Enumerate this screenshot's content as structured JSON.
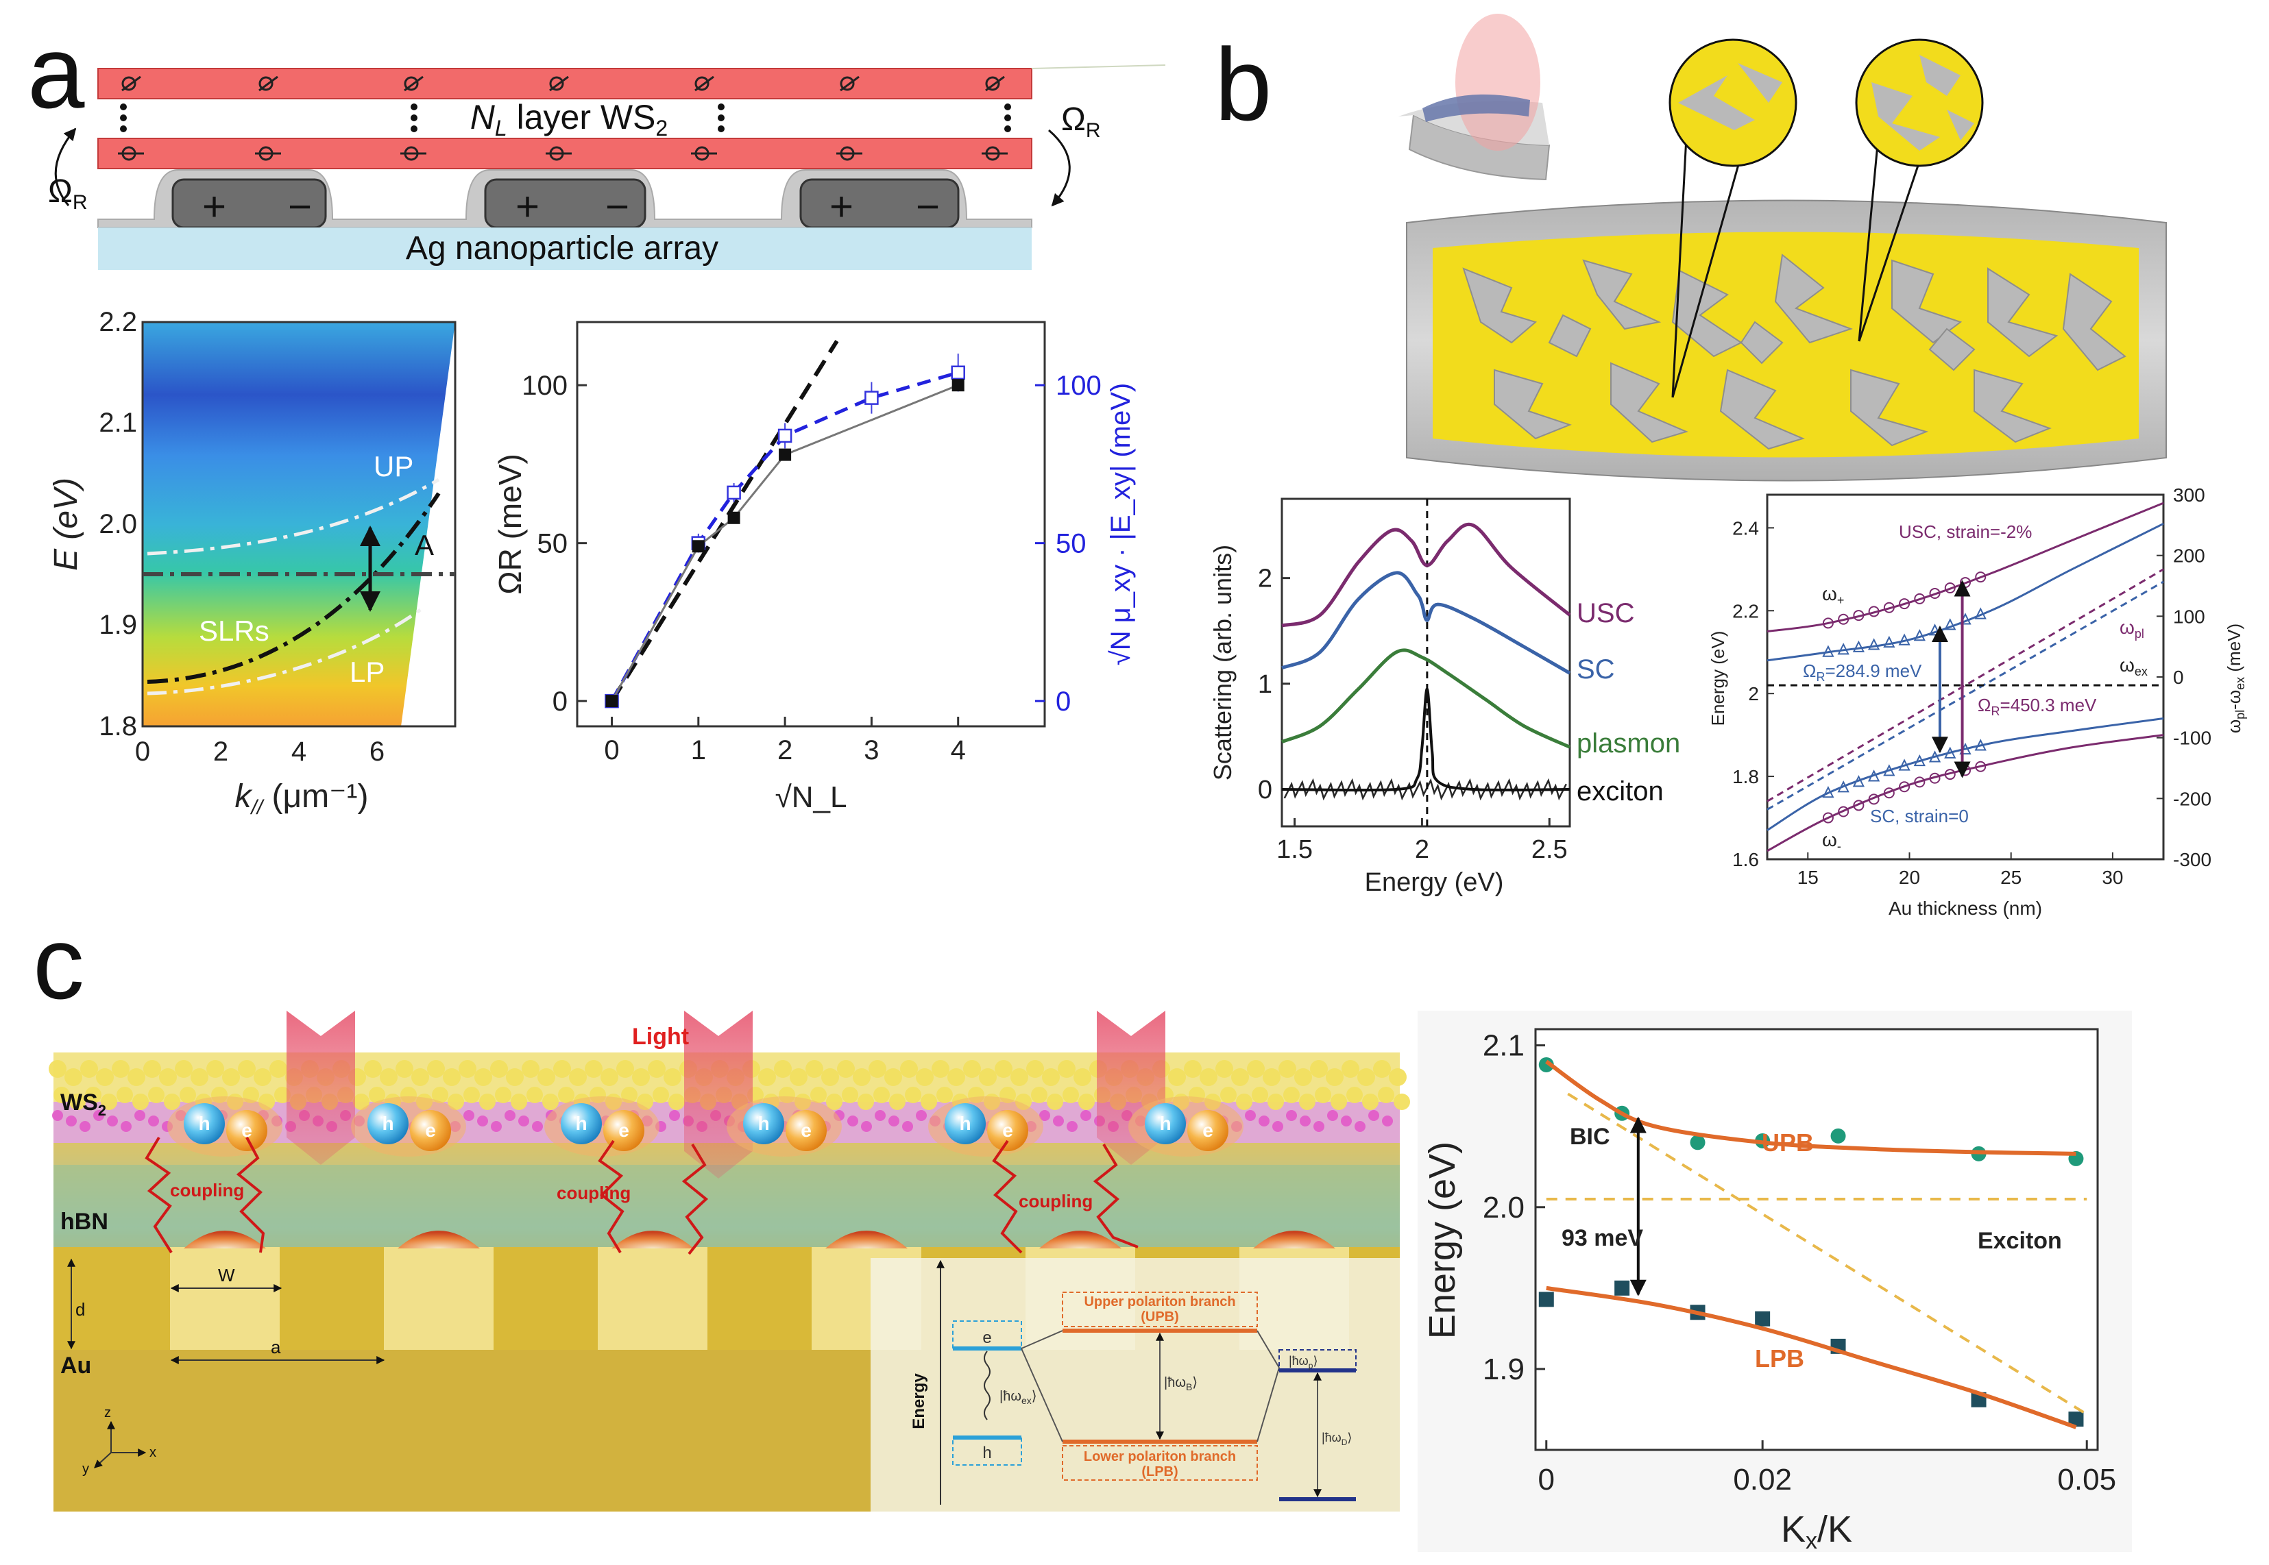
{
  "panels": {
    "a": "a",
    "b": "b",
    "c": "c"
  },
  "a_schematic": {
    "layer_label": "Nₗ layer WS₂",
    "layer_label_n": "N",
    "layer_label_sub": "L",
    "layer_label_rest": " layer WS",
    "layer_label_sub2": "2",
    "rabi_left": "Ω",
    "rabi_left_sub": "R",
    "rabi_right": "Ω",
    "rabi_right_sub": "R",
    "array_label": "Ag nanoparticle array",
    "plus": "+",
    "minus": "−"
  },
  "a_dispersion": {
    "ylabel": "E (eV)",
    "xlabel_k": "k",
    "xlabel_sub": "//",
    "xlabel_unit": " (μm⁻¹)",
    "yticks": [
      "2.2",
      "2.1",
      "2.0",
      "1.9",
      "1.8"
    ],
    "xticks": [
      "0",
      "2",
      "4",
      "6"
    ],
    "labels": {
      "up": "UP",
      "lp": "LP",
      "slrs": "SLRs",
      "a": "A"
    }
  },
  "chart_data": [
    {
      "type": "line",
      "title": "",
      "xlabel": "√N_L",
      "ylabel": "ΩR (meV)",
      "ylabel_right": "√N μ_xy · |E_xy| (meV)",
      "xlim": [
        -0.4,
        5.0
      ],
      "ylim": [
        -8,
        120
      ],
      "xticks": [
        "0",
        "1",
        "2",
        "3",
        "4"
      ],
      "yticks": [
        "0",
        "50",
        "100"
      ],
      "yticks_right": [
        "0",
        "50",
        "100"
      ],
      "series": [
        {
          "name": "measured",
          "x": [
            0,
            1,
            1.41,
            2,
            4
          ],
          "values": [
            0,
            49,
            58,
            78,
            100
          ]
        },
        {
          "name": "calculated",
          "x": [
            0,
            1,
            1.41,
            2,
            3,
            4
          ],
          "values": [
            0,
            50,
            66,
            84,
            96,
            104
          ],
          "errors": [
            0,
            3,
            3,
            4,
            5,
            6
          ]
        },
        {
          "name": "linear",
          "x": [
            0,
            2.6
          ],
          "values": [
            0,
            114
          ]
        }
      ]
    },
    {
      "type": "line",
      "title": "",
      "xlabel": "Energy (eV)",
      "ylabel": "Scattering (arb. units)",
      "xlim": [
        1.45,
        2.58
      ],
      "ylim": [
        -0.35,
        2.75
      ],
      "xticks": [
        "1.5",
        "2",
        "2.5"
      ],
      "yticks": [
        "0",
        "1",
        "2"
      ],
      "vline": 2.02,
      "series": [
        {
          "name": "USC",
          "color": "#7b2b6e",
          "x": [
            1.45,
            1.6,
            1.75,
            1.88,
            1.96,
            2.02,
            2.1,
            2.2,
            2.35,
            2.58
          ],
          "values": [
            1.55,
            1.65,
            2.15,
            2.45,
            2.35,
            2.12,
            2.35,
            2.5,
            2.1,
            1.65
          ]
        },
        {
          "name": "SC",
          "color": "#3a63a8",
          "x": [
            1.45,
            1.6,
            1.75,
            1.9,
            1.98,
            2.0,
            2.02,
            2.06,
            2.2,
            2.4,
            2.58
          ],
          "values": [
            1.15,
            1.3,
            1.8,
            2.05,
            1.85,
            1.75,
            1.6,
            1.75,
            1.62,
            1.35,
            1.1
          ]
        },
        {
          "name": "plasmon",
          "color": "#3a7d3a",
          "x": [
            1.45,
            1.6,
            1.75,
            1.9,
            2.0,
            2.1,
            2.25,
            2.4,
            2.58
          ],
          "values": [
            0.45,
            0.6,
            0.95,
            1.3,
            1.25,
            1.1,
            0.85,
            0.6,
            0.4
          ]
        },
        {
          "name": "exciton",
          "color": "#111111",
          "x": [
            1.45,
            1.9,
            1.98,
            2.0,
            2.02,
            2.04,
            2.06,
            2.2,
            2.58
          ],
          "values": [
            0.0,
            0.0,
            0.1,
            0.4,
            0.95,
            0.35,
            0.08,
            0.0,
            0.0
          ]
        }
      ]
    },
    {
      "type": "line",
      "title": "",
      "xlabel": "Au thickness (nm)",
      "ylabel": "Energy (eV)",
      "ylabel_right": "ω_pl - ω_ex (meV)",
      "xlim": [
        13,
        32.5
      ],
      "ylim": [
        1.6,
        2.48
      ],
      "xticks": [
        "15",
        "20",
        "25",
        "30"
      ],
      "yticks": [
        "1.6",
        "1.8",
        "2",
        "2.2",
        "2.4"
      ],
      "yticks_right": [
        "-300",
        "-200",
        "-100",
        "0",
        "100",
        "200",
        "300"
      ],
      "annotations": [
        "USC, strain=-2%",
        "SC, strain=0",
        "ΩR=284.9 meV",
        "ΩR=450.3 meV"
      ],
      "series": [
        {
          "name": "USC upper",
          "color": "#7b2b6e",
          "x": [
            13,
            16,
            20,
            24,
            28,
            32.5
          ],
          "values": [
            2.15,
            2.17,
            2.22,
            2.29,
            2.37,
            2.46
          ]
        },
        {
          "name": "USC lower",
          "color": "#7b2b6e",
          "x": [
            13,
            16,
            20,
            24,
            28,
            32.5
          ],
          "values": [
            1.62,
            1.7,
            1.78,
            1.83,
            1.87,
            1.9
          ]
        },
        {
          "name": "SC upper",
          "color": "#3a63a8",
          "x": [
            13,
            16,
            20,
            24,
            28,
            32.5
          ],
          "values": [
            2.08,
            2.1,
            2.13,
            2.2,
            2.3,
            2.41
          ]
        },
        {
          "name": "SC lower",
          "color": "#3a63a8",
          "x": [
            13,
            16,
            20,
            24,
            28,
            32.5
          ],
          "values": [
            1.67,
            1.76,
            1.83,
            1.88,
            1.91,
            1.94
          ]
        },
        {
          "name": "USC plasmon",
          "color": "#7b2b6e",
          "dash": true,
          "x": [
            13,
            32.5
          ],
          "values": [
            1.74,
            2.3
          ]
        },
        {
          "name": "SC plasmon",
          "color": "#3a63a8",
          "dash": true,
          "x": [
            13,
            32.5
          ],
          "values": [
            1.72,
            2.27
          ]
        },
        {
          "name": "exciton",
          "color": "#111111",
          "dash": true,
          "x": [
            13,
            32.5
          ],
          "values": [
            2.02,
            2.02
          ]
        }
      ]
    },
    {
      "type": "scatter",
      "title": "",
      "xlabel": "Kx/K",
      "ylabel": "Energy (eV)",
      "xlim": [
        -0.001,
        0.051
      ],
      "ylim": [
        1.85,
        2.11
      ],
      "xticks": [
        "0",
        "0.02",
        "0.05"
      ],
      "xtick_values": [
        0,
        0.02,
        0.05
      ],
      "yticks": [
        "2.1",
        "2.0",
        "1.9"
      ],
      "ytick_values": [
        2.1,
        2.0,
        1.9
      ],
      "annotations": [
        "UPB",
        "LPB",
        "BIC",
        "93 meV",
        "Exciton"
      ],
      "series": [
        {
          "name": "UPB data",
          "color": "#1f9a7a",
          "x": [
            0,
            0.007,
            0.014,
            0.02,
            0.027,
            0.04,
            0.049
          ],
          "values": [
            2.088,
            2.058,
            2.04,
            2.041,
            2.044,
            2.033,
            2.03
          ]
        },
        {
          "name": "LPB data",
          "color": "#1f4e5e",
          "x": [
            0,
            0.007,
            0.014,
            0.02,
            0.027,
            0.04,
            0.049
          ],
          "values": [
            1.943,
            1.95,
            1.935,
            1.931,
            1.914,
            1.881,
            1.869
          ]
        },
        {
          "name": "UPB fit",
          "color": "#e06a2a",
          "x": [
            0,
            0.005,
            0.01,
            0.02,
            0.03,
            0.04,
            0.049
          ],
          "values": [
            2.09,
            2.066,
            2.05,
            2.04,
            2.036,
            2.034,
            2.033
          ]
        },
        {
          "name": "LPB fit",
          "color": "#e06a2a",
          "x": [
            0,
            0.01,
            0.02,
            0.03,
            0.04,
            0.049
          ],
          "values": [
            1.95,
            1.94,
            1.925,
            1.905,
            1.885,
            1.864
          ]
        },
        {
          "name": "Exciton",
          "color": "#e8b84a",
          "dash": true,
          "x": [
            0,
            0.05
          ],
          "values": [
            2.005,
            2.005
          ]
        },
        {
          "name": "BIC",
          "color": "#e8b84a",
          "dash": true,
          "x": [
            0.002,
            0.05
          ],
          "values": [
            2.07,
            1.872
          ]
        }
      ]
    }
  ],
  "b_plot_labels": {
    "usc": "USC",
    "sc": "SC",
    "plasmon": "plasmon",
    "exciton": "exciton"
  },
  "b_dispersion_labels": {
    "w_plus": "ω",
    "w_plus_sub": "+",
    "w_minus": "ω",
    "w_minus_sub": "-",
    "w_pl": "ω",
    "w_pl_sub": "pl",
    "w_ex": "ω",
    "w_ex_sub": "ex",
    "rabi_sc": "Ω",
    "rabi_sc_sub": "R",
    "rabi_sc_val": "=284.9 meV",
    "rabi_usc": "Ω",
    "rabi_usc_sub": "R",
    "rabi_usc_val": "=450.3 meV",
    "usc_label": "USC, strain=-2%",
    "sc_label": "SC, strain=0",
    "right_axis_w": "ω",
    "right_axis_pl": "pl",
    "right_axis_mid": "-ω",
    "right_axis_ex": "ex",
    "right_axis_unit": " (meV)"
  },
  "c_schematic": {
    "light": "Light",
    "ws2": "WS",
    "ws2_sub": "2",
    "hbn": "hBN",
    "au": "Au",
    "coupling": "coupling",
    "h": "h",
    "e": "e",
    "d": "d",
    "w": "W",
    "a": "a",
    "energy": "Energy",
    "upb_box_1": "Upper polariton branch",
    "upb_box_2": "(UPB)",
    "lpb_box_1": "Lower polariton branch",
    "lpb_box_2": "(LPB)",
    "hw_ex": "|ħω",
    "hw_ex_sub": "ex",
    "hw_ex_end": "⟩",
    "hw_b": "|ħω",
    "hw_b_sub": "B",
    "hw_b_end": "⟩",
    "hw_p": "|ħω",
    "hw_p_sub": "p",
    "hw_p_end": "⟩",
    "hw_d": "|ħω",
    "hw_d_sub": "D",
    "hw_d_end": "⟩",
    "axis_z": "z",
    "axis_x": "x",
    "axis_y": "y"
  },
  "c_plot_labels": {
    "upb": "UPB",
    "lpb": "LPB",
    "bic": "BIC",
    "splitting": "93 meV",
    "exciton": "Exciton",
    "x_main": "K",
    "x_sub": "x",
    "x_end": "/K"
  },
  "colors": {
    "ws2_red": "#f26a6a",
    "ag_blue": "#c7e7f2",
    "gold": "#f2dc1c",
    "orange_fit": "#e06a2a",
    "teal_point": "#1f9a7a",
    "navy_point": "#1f4e5e"
  }
}
